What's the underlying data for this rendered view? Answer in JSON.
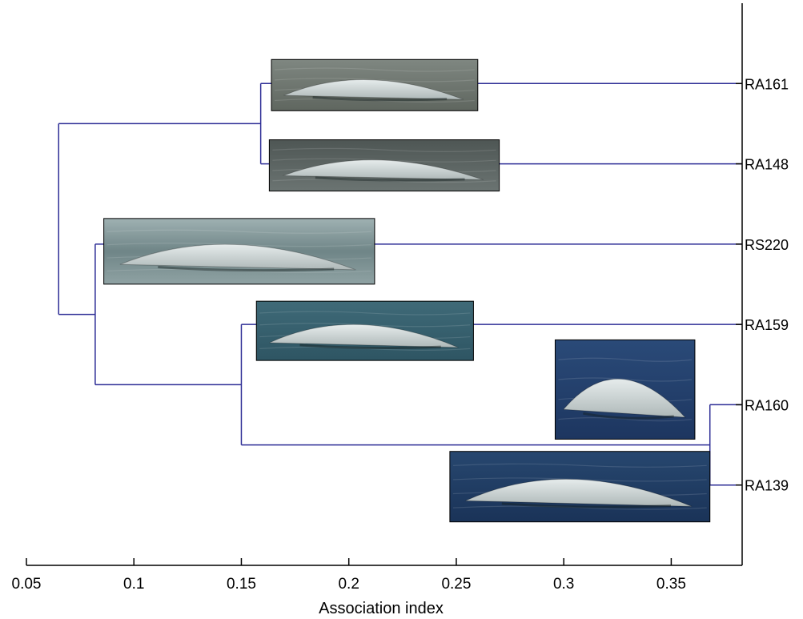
{
  "chart_data": {
    "type": "dendrogram",
    "xlabel": "Association index",
    "xlim": [
      0.05,
      0.383
    ],
    "xticks": [
      0.05,
      0.1,
      0.15,
      0.2,
      0.25,
      0.3,
      0.35
    ],
    "xtick_labels": [
      "0.05",
      "0.1",
      "0.15",
      "0.2",
      "0.25",
      "0.3",
      "0.35"
    ],
    "leaves": [
      "RA161",
      "RA148",
      "RS220",
      "RA159",
      "RA160",
      "RA139"
    ],
    "merges": [
      {
        "id": "m1",
        "children": [
          "RA160",
          "RA139"
        ],
        "height": 0.368
      },
      {
        "id": "m2",
        "children": [
          "RA161",
          "RA148"
        ],
        "height": 0.159
      },
      {
        "id": "m3",
        "children": [
          "RA159",
          "m1"
        ],
        "height": 0.15
      },
      {
        "id": "m4",
        "children": [
          "RS220",
          "m3"
        ],
        "height": 0.082
      },
      {
        "id": "m5",
        "children": [
          "m2",
          "m4"
        ],
        "height": 0.065
      }
    ],
    "line_color": "#2e2e96",
    "leaf_photos": [
      {
        "leaf": "RA161",
        "x0": 0.164,
        "x1": 0.26,
        "tone": "flat-grey"
      },
      {
        "leaf": "RA148",
        "x0": 0.163,
        "x1": 0.27,
        "tone": "dark-grey"
      },
      {
        "leaf": "RS220",
        "x0": 0.086,
        "x1": 0.212,
        "tone": "wave-grey"
      },
      {
        "leaf": "RA159",
        "x0": 0.157,
        "x1": 0.258,
        "tone": "blue-grey"
      },
      {
        "leaf": "RA160",
        "x0": 0.296,
        "x1": 0.361,
        "tone": "deep-blue"
      },
      {
        "leaf": "RA139",
        "x0": 0.247,
        "x1": 0.368,
        "tone": "deep-blue-white"
      }
    ]
  }
}
